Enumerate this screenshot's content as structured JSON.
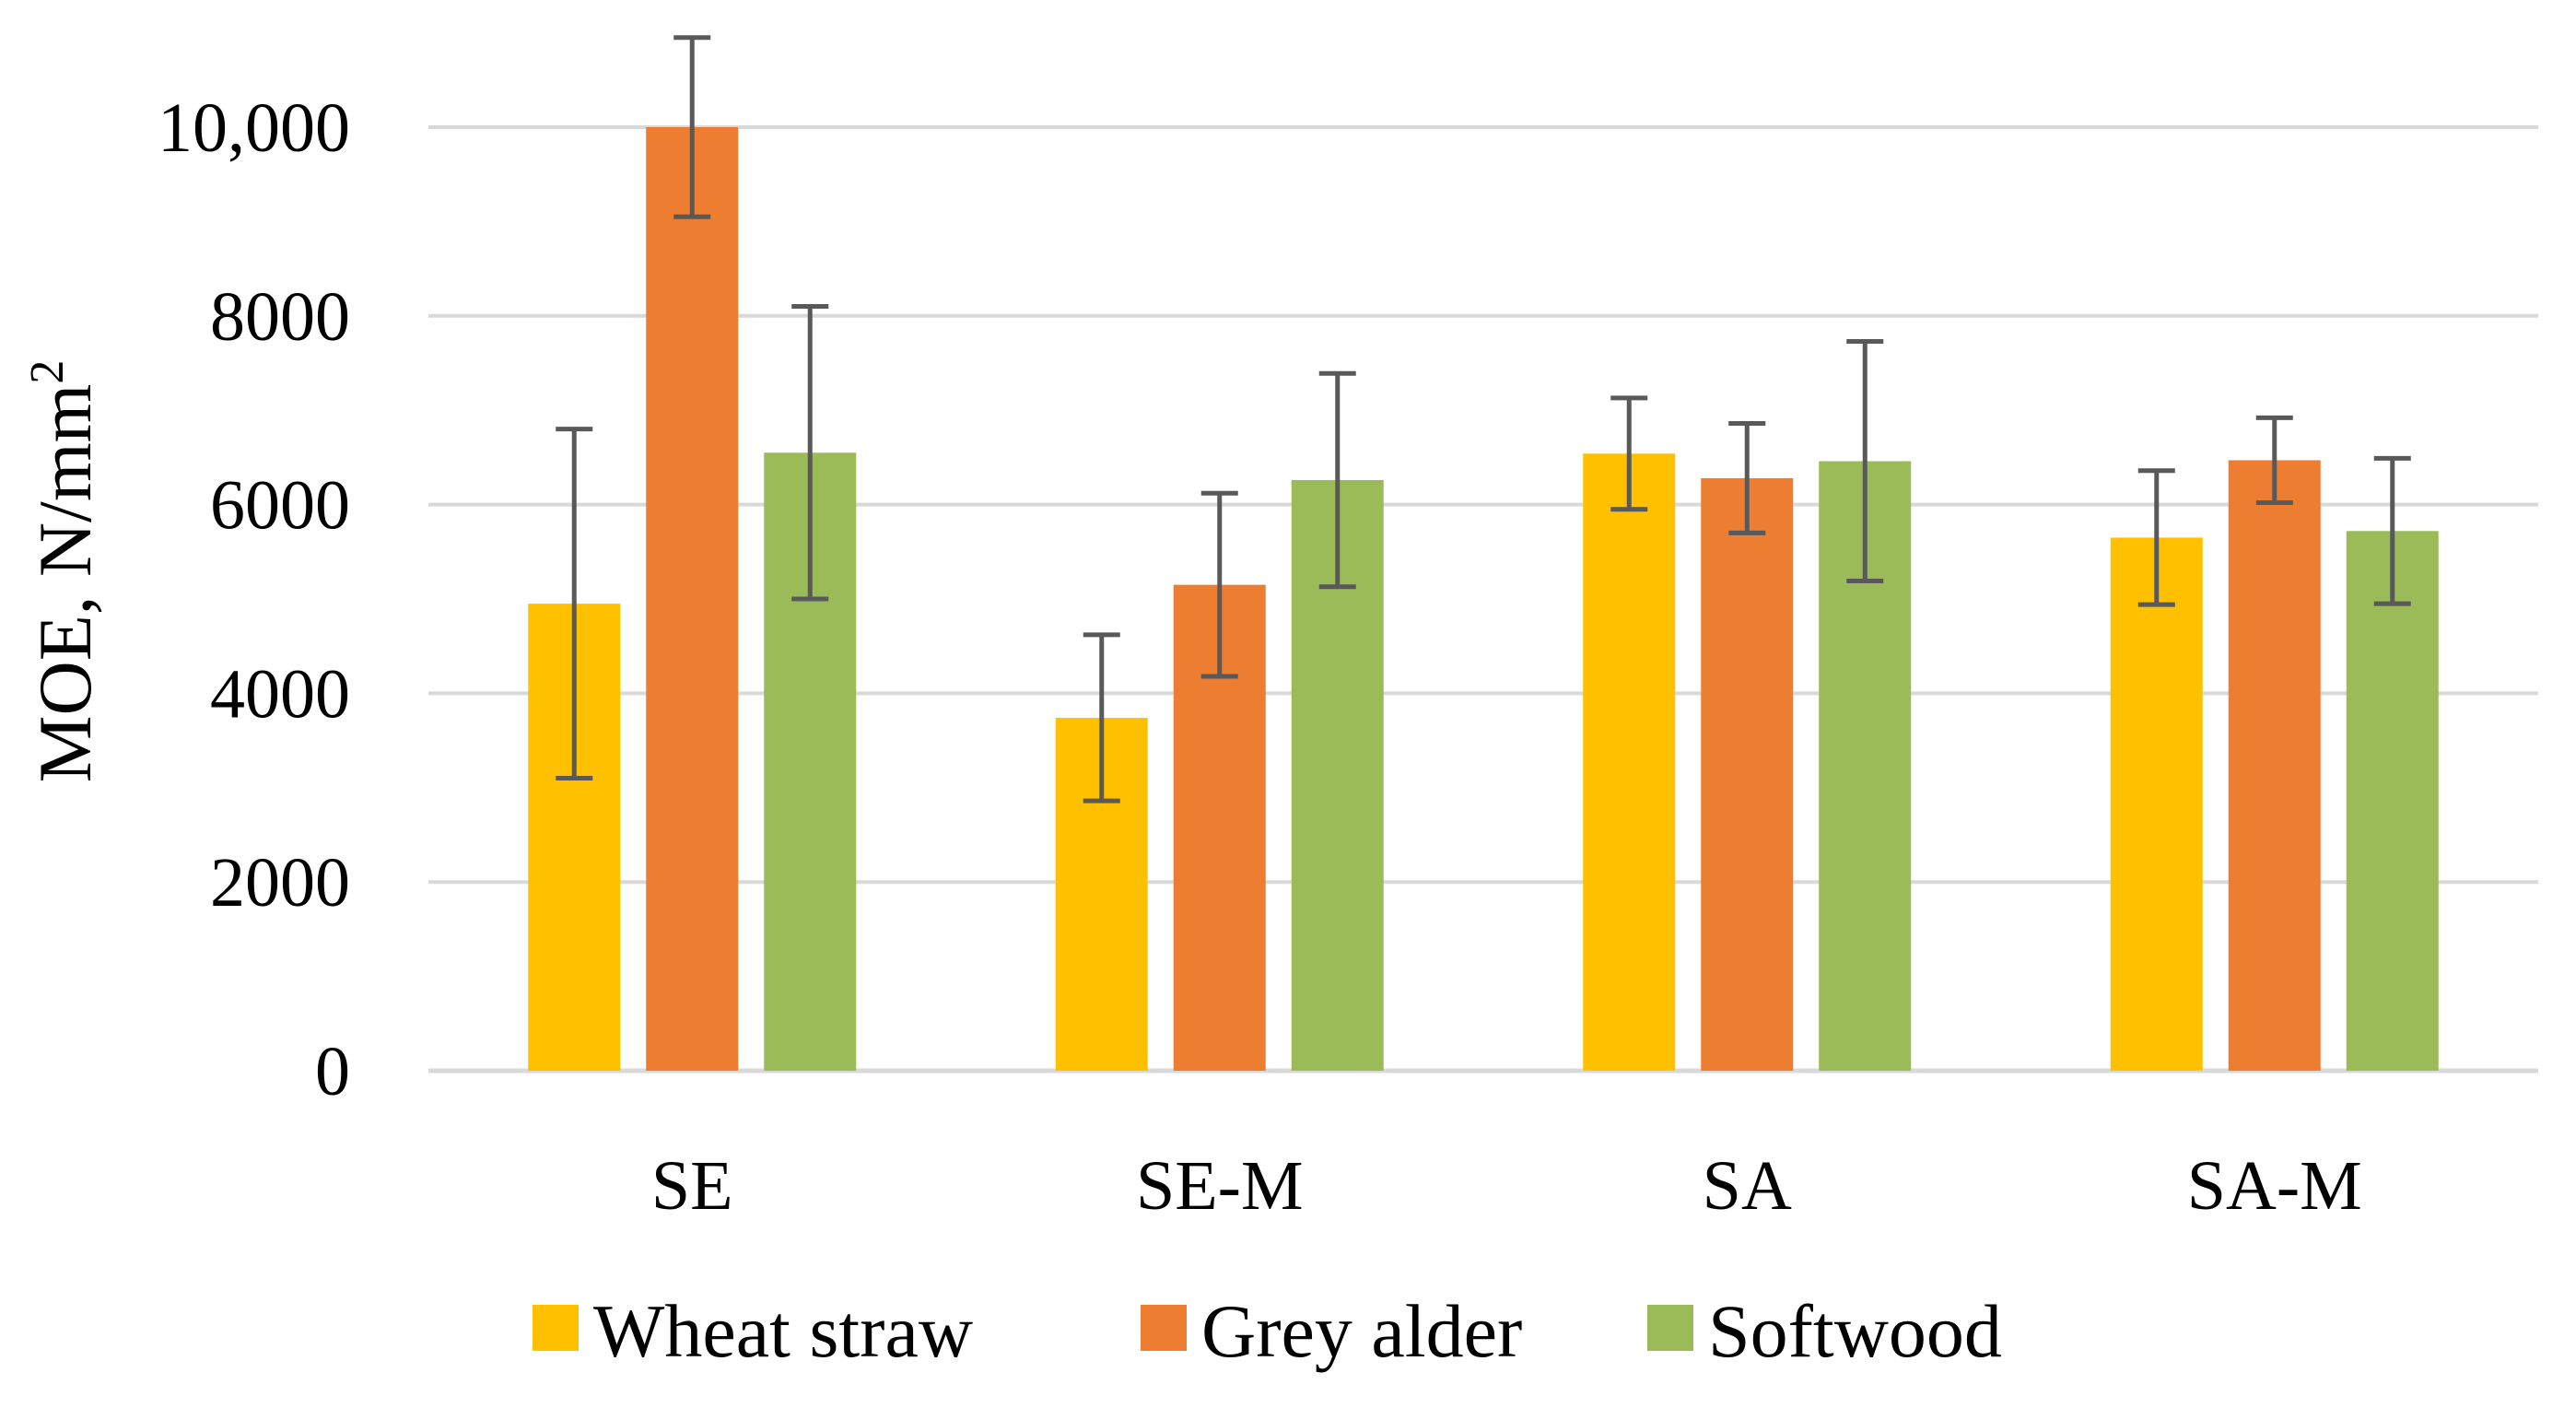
{
  "chart_data": {
    "type": "bar",
    "title": "",
    "xlabel": "",
    "ylabel": "MOE, N/mm",
    "ylabel_superscript": "2",
    "categories": [
      "SE",
      "SE-M",
      "SA",
      "SA-M"
    ],
    "ylim": [
      0,
      10000
    ],
    "yticks": [
      0,
      2000,
      4000,
      6000,
      8000,
      10000
    ],
    "ytick_labels": [
      "0",
      "2000",
      "4000",
      "6000",
      "8000",
      "10,000"
    ],
    "grid": true,
    "legend_position": "bottom",
    "error_bars": true,
    "series": [
      {
        "name": "Wheat straw",
        "color": "#FFC000",
        "values": [
          4950,
          3740,
          6540,
          5650
        ],
        "errors": [
          1850,
          880,
          590,
          710
        ]
      },
      {
        "name": "Grey alder",
        "color": "#ED7D31",
        "values": [
          10000,
          5150,
          6280,
          6470
        ],
        "errors": [
          950,
          970,
          580,
          450
        ]
      },
      {
        "name": "Softwood",
        "color": "#9BBB59",
        "values": [
          6550,
          6260,
          6460,
          5720
        ],
        "errors": [
          1550,
          1130,
          1270,
          770
        ]
      }
    ]
  }
}
